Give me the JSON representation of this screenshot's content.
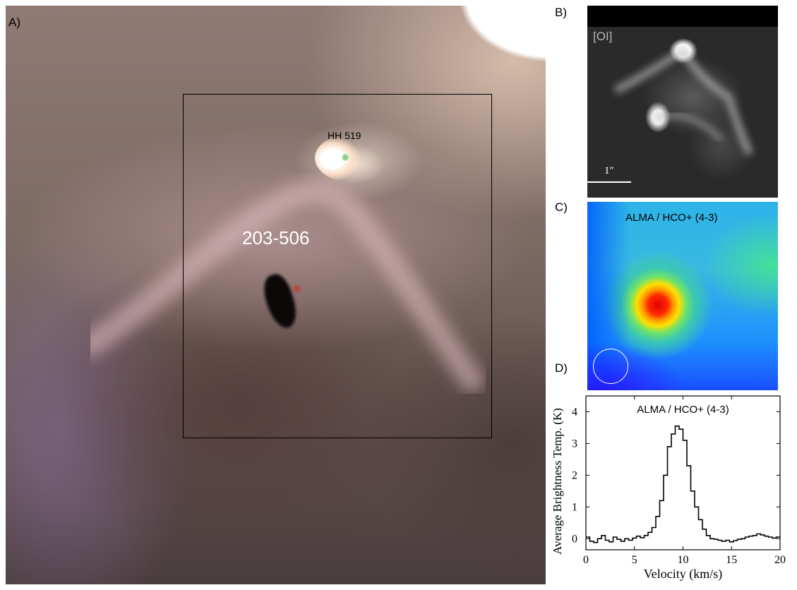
{
  "panels": {
    "a": {
      "label": "A)",
      "source_label": "HH 519",
      "object_label": "203-506"
    },
    "b": {
      "label": "B)",
      "filter_label": "[OI]",
      "scale_label": "1″"
    },
    "c": {
      "label": "C)",
      "title": "ALMA / HCO+ (4-3)"
    },
    "d": {
      "label": "D)"
    }
  },
  "chart_data": {
    "type": "line",
    "title": "ALMA / HCO+ (4-3)",
    "xlabel": "Velocity (km/s)",
    "ylabel": "Average Brightness Temp. (K)",
    "xlim": [
      0,
      20
    ],
    "ylim": [
      -0.35,
      4.5
    ],
    "xticks": [
      0,
      5,
      10,
      15,
      20
    ],
    "yticks": [
      0,
      1,
      2,
      3,
      4
    ],
    "grid": false,
    "step": true,
    "series": [
      {
        "x": [
          0,
          0.4,
          0.8,
          1.2,
          1.6,
          2.0,
          2.4,
          2.8,
          3.2,
          3.6,
          4.0,
          4.4,
          4.8,
          5.2,
          5.6,
          6.0,
          6.4,
          6.8,
          7.2,
          7.6,
          8.0,
          8.4,
          8.8,
          9.2,
          9.6,
          10.0,
          10.4,
          10.8,
          11.2,
          11.6,
          12.0,
          12.4,
          12.8,
          13.2,
          13.6,
          14.0,
          14.4,
          14.8,
          15.2,
          15.6,
          16.0,
          16.4,
          16.8,
          17.2,
          17.6,
          18.0,
          18.4,
          18.8,
          19.2,
          19.6
        ],
        "y": [
          0.05,
          -0.08,
          -0.12,
          0.0,
          0.1,
          -0.05,
          -0.1,
          0.05,
          -0.02,
          -0.08,
          0.0,
          -0.05,
          0.02,
          0.08,
          0.03,
          0.1,
          0.2,
          0.35,
          0.7,
          1.2,
          2.0,
          2.9,
          3.3,
          3.55,
          3.45,
          3.1,
          2.3,
          1.5,
          1.0,
          0.6,
          0.3,
          0.1,
          0.0,
          -0.02,
          -0.05,
          -0.08,
          -0.05,
          -0.1,
          -0.06,
          -0.02,
          0.0,
          0.05,
          0.08,
          0.1,
          0.15,
          0.12,
          0.08,
          0.05,
          0.02,
          0.05
        ]
      }
    ]
  }
}
